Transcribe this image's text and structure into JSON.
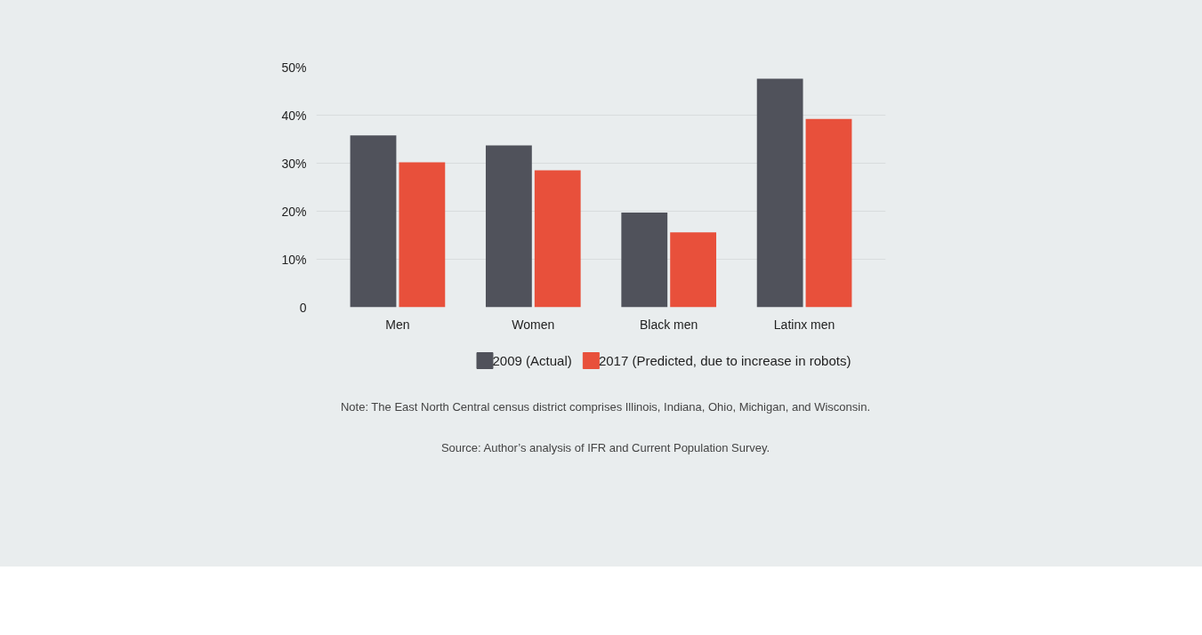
{
  "chart_data": {
    "type": "bar",
    "categories": [
      "Men",
      "Women",
      "Black men",
      "Latinx men"
    ],
    "series": [
      {
        "name": "2009 (Actual)",
        "color": "#50525b",
        "values": [
          35.8,
          33.7,
          19.7,
          47.6
        ]
      },
      {
        "name": "2017 (Predicted, due to increase in robots)",
        "color": "#e8503b",
        "values": [
          30.2,
          28.5,
          15.6,
          39.2
        ]
      }
    ],
    "ylim": [
      0,
      50
    ],
    "yticks": [
      0,
      {
        "value": 10,
        "label": "10%"
      },
      {
        "value": 20,
        "label": "20%"
      },
      {
        "value": 30,
        "label": "30%"
      },
      {
        "value": 40,
        "label": "40%"
      },
      {
        "value": 50,
        "label": "50%"
      }
    ],
    "grid": "y",
    "legend": "bottom",
    "annotations": [
      "Note: The East North Central census district comprises Illinois, Indiana, Ohio, Michigan, and Wisconsin.",
      "Source: Author’s analysis of IFR and Current Population Survey."
    ]
  }
}
